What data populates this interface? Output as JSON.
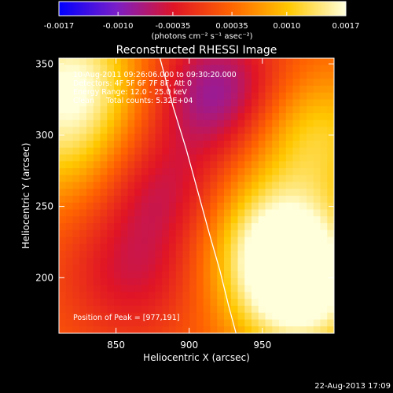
{
  "chart_data": {
    "type": "heatmap",
    "title": "Reconstructed RHESSI Image",
    "xlabel": "Heliocentric X (arcsec)",
    "ylabel": "Heliocentric Y (arcsec)",
    "xlim": [
      811,
      999
    ],
    "ylim": [
      161,
      354
    ],
    "x_ticks": [
      850,
      900,
      950
    ],
    "y_ticks": [
      200,
      250,
      300,
      350
    ],
    "colorbar": {
      "min": -0.0017,
      "max": 0.0017,
      "ticks": [
        -0.0017,
        -0.001,
        -0.00035,
        0.00035,
        0.001,
        0.0017
      ],
      "tick_labels": [
        "-0.0017",
        "-0.0010",
        "-0.00035",
        "0.00035",
        "0.0010",
        "0.0017"
      ],
      "unit_label": "(photons cm⁻² s⁻¹ asec⁻²)",
      "colors": [
        "#0000ff",
        "#7a1ec8",
        "#e01426",
        "#ff6400",
        "#ffc800",
        "#ffffdc"
      ]
    },
    "grid": false,
    "annotations": [
      "10-Aug-2011 09:26:06.000 to 09:30:20.000",
      "Detectors: 4F 5F 6F 7F 8F, Att 0",
      "Energy Range: 12.0 - 25.0 keV",
      "Clean     Total counts: 5.32E+04",
      "Position of Peak = [977,191]"
    ],
    "peak_position": [
      977,
      191
    ],
    "limb_curve": {
      "x": [
        880,
        889,
        898,
        906,
        914,
        921,
        927,
        932
      ],
      "y": [
        354,
        320,
        290,
        260,
        230,
        205,
        180,
        161
      ]
    },
    "intensity_sources": [
      {
        "x": 975,
        "y": 191,
        "amplitude": 0.0017
      },
      {
        "x": 960,
        "y": 230,
        "amplitude": 0.0012
      },
      {
        "x": 985,
        "y": 300,
        "amplitude": 0.0009
      },
      {
        "x": 820,
        "y": 340,
        "amplitude": 0.0013
      },
      {
        "x": 815,
        "y": 290,
        "amplitude": 0.0007
      },
      {
        "x": 920,
        "y": 330,
        "amplitude": -0.0011
      },
      {
        "x": 880,
        "y": 260,
        "amplitude": -0.0007
      },
      {
        "x": 860,
        "y": 200,
        "amplitude": -0.0006
      }
    ],
    "background_level": 0.00025
  },
  "footer": {
    "timestamp": "22-Aug-2013 17:09"
  }
}
